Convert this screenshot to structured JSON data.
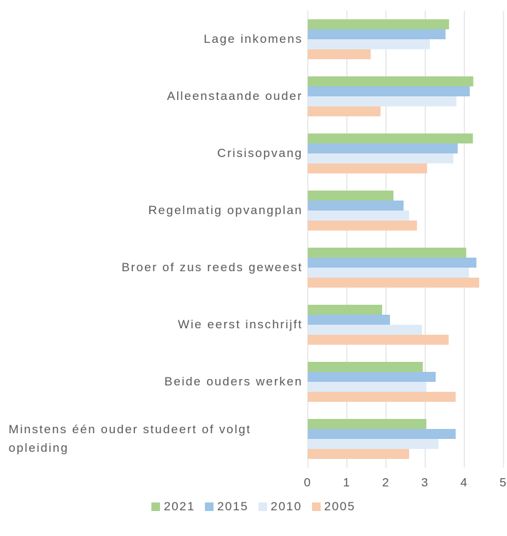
{
  "chart_data": {
    "type": "bar",
    "orientation": "horizontal",
    "categories": [
      "Lage inkomens",
      "Alleenstaande ouder",
      "Crisisopvang",
      "Regelmatig opvangplan",
      "Broer of zus reeds geweest",
      "Wie eerst inschrijft",
      "Beide ouders werken",
      "Minstens één ouder studeert of volgt opleiding"
    ],
    "series": [
      {
        "name": "2021",
        "color": "#a9d18e",
        "values": [
          3.61,
          4.23,
          4.22,
          2.19,
          4.05,
          1.9,
          2.94,
          3.03
        ]
      },
      {
        "name": "2015",
        "color": "#9dc3e6",
        "values": [
          3.52,
          4.14,
          3.83,
          2.45,
          4.31,
          2.1,
          3.27,
          3.78
        ]
      },
      {
        "name": "2010",
        "color": "#deebf7",
        "values": [
          3.12,
          3.8,
          3.72,
          2.59,
          4.12,
          2.92,
          3.03,
          3.34
        ]
      },
      {
        "name": "2005",
        "color": "#f8cbad",
        "values": [
          1.61,
          1.86,
          3.05,
          2.79,
          4.38,
          3.6,
          3.78,
          2.59
        ]
      }
    ],
    "xlim": [
      0,
      5
    ],
    "xticks": [
      0,
      1,
      2,
      3,
      4,
      5
    ],
    "grid": true,
    "legend": "bottom"
  }
}
